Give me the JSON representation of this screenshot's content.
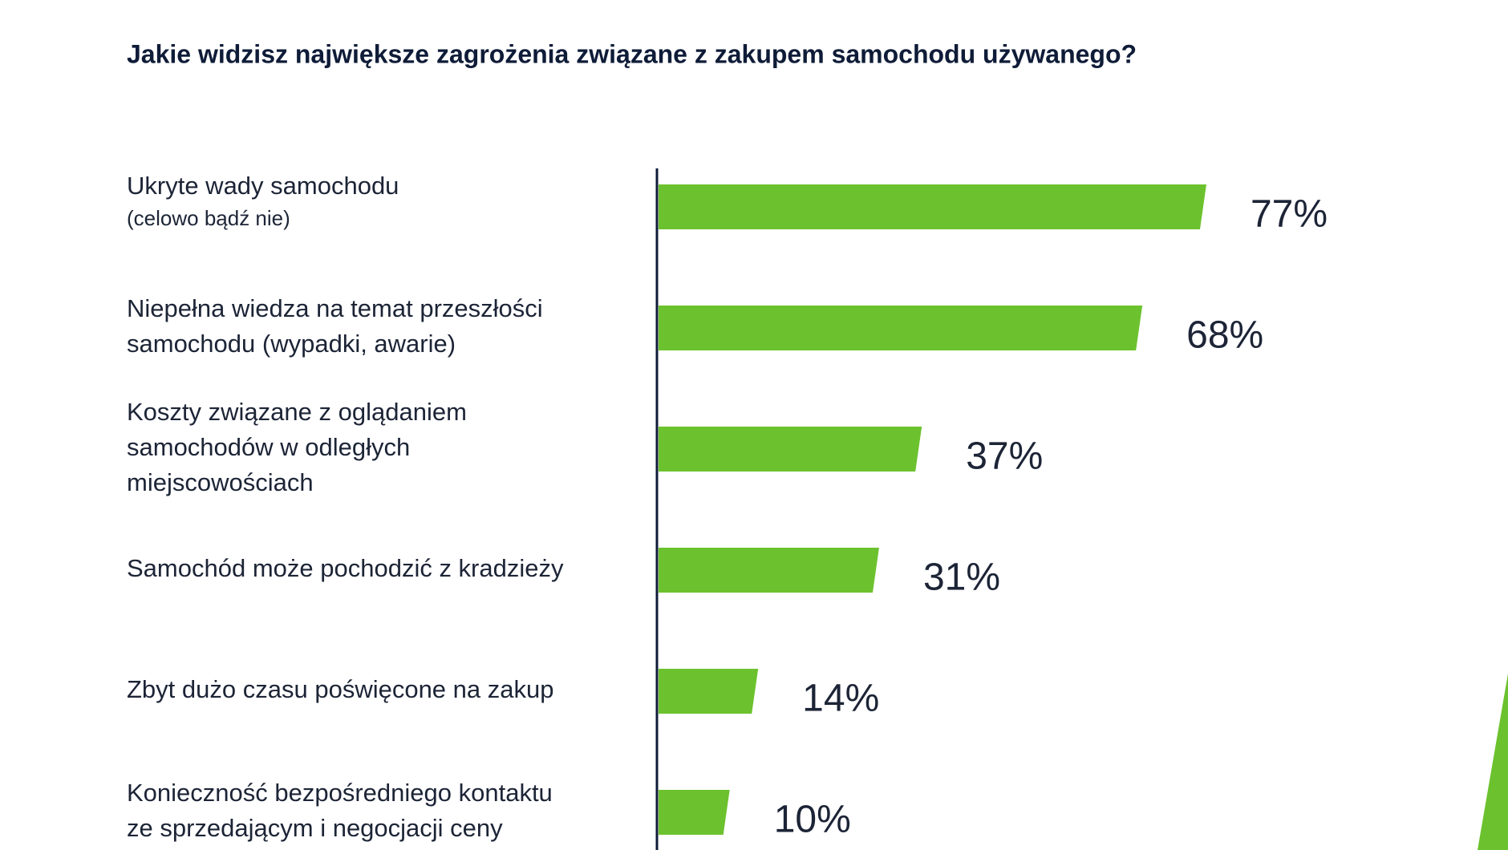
{
  "chart_data": {
    "type": "bar",
    "orientation": "horizontal",
    "title": "Jakie widzisz największe zagrożenia związane z zakupem samochodu używanego?",
    "categories": [
      [
        "Ukryte wady samochodu",
        "(celowo bądź nie)"
      ],
      [
        "Niepełna wiedza na temat przeszłości",
        "samochodu (wypadki, awarie)"
      ],
      [
        "Koszty związane z oglądaniem",
        "samochodów w odległych",
        "miejscowościach"
      ],
      [
        "Samochód może pochodzić z kradzieży"
      ],
      [
        "Zbyt dużo czasu poświęcone na zakup"
      ],
      [
        "Konieczność bezpośredniego kontaktu",
        "ze sprzedającym i negocjacji ceny"
      ]
    ],
    "values": [
      77,
      68,
      37,
      31,
      14,
      10
    ],
    "value_labels": [
      "77%",
      "68%",
      "37%",
      "31%",
      "14%",
      "10%"
    ],
    "color": "#6cc22e",
    "xlim": [
      0,
      100
    ]
  }
}
